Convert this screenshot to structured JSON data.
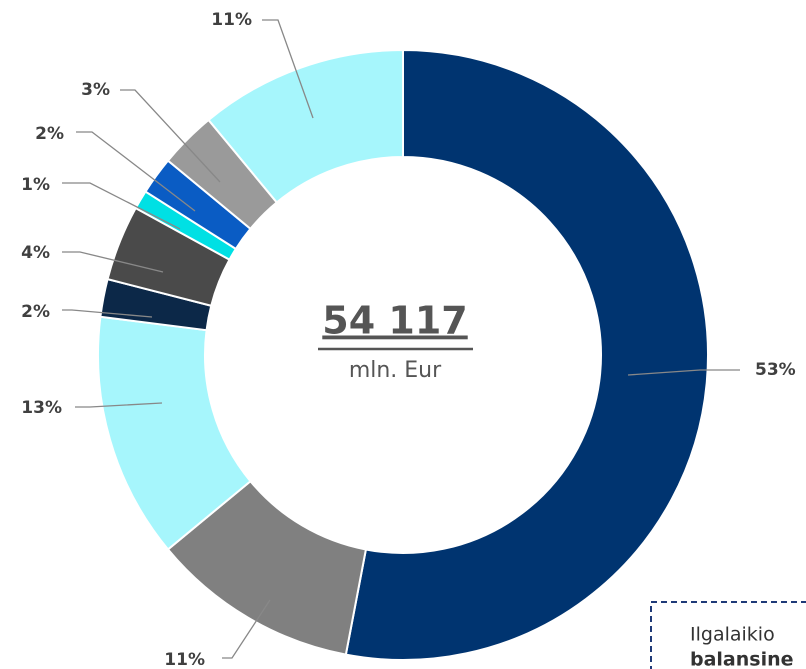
{
  "chart_data": {
    "type": "donut",
    "center_value": "54 117",
    "center_unit": "mln. Eur",
    "values": [
      53,
      11,
      13,
      2,
      4,
      1,
      2,
      3,
      11
    ],
    "value_labels": [
      "53%",
      "11%",
      "13%",
      "2%",
      "4%",
      "1%",
      "2%",
      "3%",
      "11%"
    ],
    "colors": [
      "#003470",
      "#808080",
      "#a6f6fc",
      "#0c2848",
      "#4a4a4a",
      "#00e0e4",
      "#0a5cc4",
      "#9a9a9a",
      "#a6f6fc"
    ],
    "annotation": [
      "Ilgalaikio",
      "balansine"
    ]
  }
}
